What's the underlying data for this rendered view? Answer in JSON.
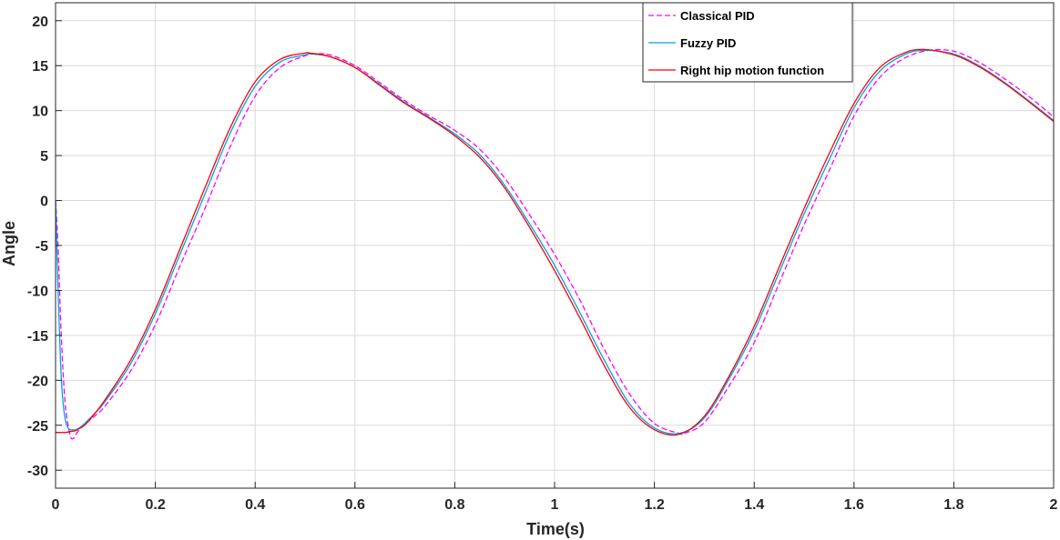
{
  "chart_data": {
    "type": "line",
    "title": "",
    "xlabel": "Time(s)",
    "ylabel": "Angle",
    "xlim": [
      0,
      2
    ],
    "ylim": [
      -32,
      22
    ],
    "xticks": [
      0,
      0.2,
      0.4,
      0.6,
      0.8,
      1,
      1.2,
      1.4,
      1.6,
      1.8,
      2
    ],
    "xtick_labels": [
      "0",
      "0.2",
      "0.4",
      "0.6",
      "0.8",
      "1",
      "1.2",
      "1.4",
      "1.6",
      "1.8",
      "2"
    ],
    "yticks": [
      -30,
      -25,
      -20,
      -15,
      -10,
      -5,
      0,
      5,
      10,
      15,
      20
    ],
    "ytick_labels": [
      "-30",
      "-25",
      "-20",
      "-15",
      "-10",
      "-5",
      "0",
      "5",
      "10",
      "15",
      "20"
    ],
    "grid": true,
    "legend_position": "top-right",
    "series": [
      {
        "name": "Classical PID",
        "color": "#ff00ff",
        "style": "dashed",
        "x": [
          0,
          0.005,
          0.01,
          0.015,
          0.02,
          0.025,
          0.03,
          0.035,
          0.04,
          0.05,
          0.06,
          0.08,
          0.1,
          0.15,
          0.2,
          0.25,
          0.3,
          0.35,
          0.4,
          0.45,
          0.5,
          0.52,
          0.55,
          0.6,
          0.65,
          0.7,
          0.75,
          0.8,
          0.85,
          0.9,
          0.95,
          1.0,
          1.05,
          1.1,
          1.15,
          1.2,
          1.25,
          1.26,
          1.3,
          1.35,
          1.4,
          1.45,
          1.5,
          1.55,
          1.6,
          1.65,
          1.7,
          1.75,
          1.8,
          1.85,
          1.9,
          1.95,
          2.0
        ],
        "y": [
          0,
          -5,
          -13,
          -19,
          -23,
          -25,
          -26.3,
          -26.5,
          -26.1,
          -25.3,
          -24.8,
          -23.9,
          -22.8,
          -19,
          -13.8,
          -7.2,
          -0.8,
          6,
          11.6,
          14.8,
          16.1,
          16.3,
          16.2,
          15,
          13.1,
          11.1,
          9.4,
          7.8,
          5.7,
          2.5,
          -1.6,
          -6,
          -11,
          -16.6,
          -21.5,
          -24.8,
          -25.9,
          -25.9,
          -24.7,
          -20.6,
          -15.8,
          -9.2,
          -2.7,
          3.3,
          9.4,
          13.6,
          15.8,
          16.7,
          16.6,
          15.4,
          13.6,
          11.6,
          9.3
        ]
      },
      {
        "name": "Fuzzy PID",
        "color": "#00a2e8",
        "style": "solid",
        "x": [
          0,
          0.005,
          0.01,
          0.015,
          0.02,
          0.025,
          0.03,
          0.035,
          0.04,
          0.05,
          0.06,
          0.08,
          0.1,
          0.15,
          0.2,
          0.25,
          0.3,
          0.35,
          0.4,
          0.45,
          0.5,
          0.51,
          0.55,
          0.6,
          0.65,
          0.7,
          0.75,
          0.8,
          0.85,
          0.9,
          0.95,
          1.0,
          1.05,
          1.1,
          1.15,
          1.2,
          1.25,
          1.3,
          1.35,
          1.4,
          1.45,
          1.5,
          1.55,
          1.6,
          1.65,
          1.7,
          1.74,
          1.8,
          1.85,
          1.9,
          1.95,
          2.0
        ],
        "y": [
          0,
          -10,
          -18,
          -22.5,
          -24.5,
          -25.3,
          -25.5,
          -25.5,
          -25.5,
          -25.2,
          -24.7,
          -23.6,
          -22.3,
          -18.2,
          -12.6,
          -5.9,
          0.8,
          7.5,
          12.7,
          15.4,
          16.2,
          16.3,
          16,
          14.8,
          12.9,
          10.9,
          9.2,
          7.4,
          5.1,
          1.7,
          -2.6,
          -7.2,
          -12.4,
          -17.8,
          -22.6,
          -25.3,
          -25.9,
          -24.2,
          -19.8,
          -14.5,
          -8,
          -1.5,
          4.5,
          10.3,
          14.3,
          16.2,
          16.7,
          16.3,
          15,
          13.2,
          11.1,
          8.9
        ]
      },
      {
        "name": "Right hip motion function",
        "color": "#ff0000",
        "style": "solid",
        "x": [
          0,
          0.01,
          0.02,
          0.03,
          0.04,
          0.05,
          0.06,
          0.08,
          0.1,
          0.15,
          0.2,
          0.25,
          0.3,
          0.35,
          0.4,
          0.45,
          0.5,
          0.51,
          0.55,
          0.6,
          0.65,
          0.7,
          0.75,
          0.8,
          0.85,
          0.9,
          0.95,
          1.0,
          1.05,
          1.1,
          1.15,
          1.2,
          1.25,
          1.3,
          1.35,
          1.4,
          1.45,
          1.5,
          1.55,
          1.6,
          1.65,
          1.7,
          1.74,
          1.8,
          1.85,
          1.9,
          1.95,
          2.0
        ],
        "y": [
          -25.8,
          -25.8,
          -25.8,
          -25.7,
          -25.6,
          -25.3,
          -24.9,
          -23.6,
          -22.1,
          -17.8,
          -12.1,
          -5.3,
          1.5,
          8.1,
          13.2,
          15.7,
          16.4,
          16.4,
          16,
          14.8,
          12.8,
          10.8,
          9.1,
          7.2,
          4.8,
          1.4,
          -3,
          -7.8,
          -13,
          -18.4,
          -23,
          -25.5,
          -26,
          -24,
          -19.5,
          -14,
          -7.4,
          -0.9,
          5.2,
          10.8,
          14.7,
          16.4,
          16.8,
          16.2,
          14.9,
          13.1,
          11,
          8.8
        ]
      }
    ]
  }
}
